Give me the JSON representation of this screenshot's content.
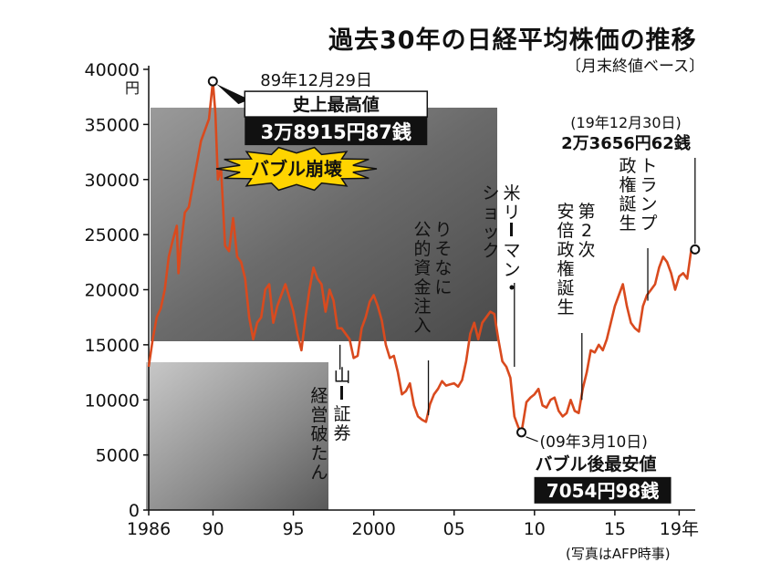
{
  "chart_data": {
    "type": "line",
    "title": "過去30年の日経平均株価の推移",
    "subtitle": "〔月末終値ベース〕",
    "ylabel": "円",
    "ylim": [
      0,
      40000
    ],
    "xlim": [
      1986,
      2020
    ],
    "yticks": [
      0,
      5000,
      10000,
      15000,
      20000,
      25000,
      30000,
      35000,
      40000
    ],
    "xtick_labels": [
      {
        "x": 1986,
        "label": "1986"
      },
      {
        "x": 1990,
        "label": "90"
      },
      {
        "x": 1995,
        "label": "95"
      },
      {
        "x": 2000,
        "label": "2000"
      },
      {
        "x": 2005,
        "label": "05"
      },
      {
        "x": 2010,
        "label": "10"
      },
      {
        "x": 2015,
        "label": "15"
      },
      {
        "x": 2019,
        "label": "19年"
      }
    ],
    "series": [
      {
        "x": [
          1986.0,
          1986.25,
          1986.5,
          1986.75,
          1987.0,
          1987.25,
          1987.5,
          1987.75,
          1987.85,
          1988.0,
          1988.25,
          1988.5,
          1988.75,
          1989.0,
          1989.25,
          1989.5,
          1989.75,
          1989.99,
          1990.15,
          1990.3,
          1990.5,
          1990.75,
          1991.0,
          1991.25,
          1991.5,
          1991.75,
          1992.0,
          1992.25,
          1992.5,
          1992.75,
          1993.0,
          1993.25,
          1993.5,
          1993.75,
          1994.0,
          1994.25,
          1994.5,
          1994.75,
          1995.0,
          1995.25,
          1995.5,
          1995.75,
          1996.0,
          1996.25,
          1996.5,
          1996.75,
          1997.0,
          1997.25,
          1997.5,
          1997.75,
          1998.0,
          1998.25,
          1998.5,
          1998.75,
          1999.0,
          1999.25,
          1999.5,
          1999.75,
          2000.0,
          2000.25,
          2000.5,
          2000.75,
          2001.0,
          2001.25,
          2001.5,
          2001.75,
          2002.0,
          2002.25,
          2002.5,
          2002.75,
          2003.0,
          2003.25,
          2003.5,
          2003.75,
          2004.0,
          2004.25,
          2004.5,
          2004.75,
          2005.0,
          2005.25,
          2005.5,
          2005.75,
          2006.0,
          2006.25,
          2006.5,
          2006.75,
          2007.0,
          2007.25,
          2007.5,
          2007.75,
          2008.0,
          2008.25,
          2008.5,
          2008.75,
          2009.0,
          2009.19,
          2009.5,
          2009.75,
          2010.0,
          2010.25,
          2010.5,
          2010.75,
          2011.0,
          2011.25,
          2011.5,
          2011.75,
          2012.0,
          2012.25,
          2012.5,
          2012.75,
          2013.0,
          2013.25,
          2013.5,
          2013.75,
          2014.0,
          2014.25,
          2014.5,
          2014.75,
          2015.0,
          2015.25,
          2015.5,
          2015.75,
          2016.0,
          2016.25,
          2016.5,
          2016.75,
          2017.0,
          2017.25,
          2017.5,
          2017.75,
          2018.0,
          2018.25,
          2018.5,
          2018.75,
          2019.0,
          2019.25,
          2019.5,
          2019.75,
          2019.99
        ],
        "values": [
          13000,
          15500,
          17500,
          18300,
          20000,
          23000,
          24500,
          25800,
          21500,
          24000,
          27000,
          27500,
          29500,
          31500,
          33500,
          34500,
          35500,
          38915,
          36000,
          30000,
          31000,
          24000,
          23500,
          26500,
          23000,
          22500,
          21000,
          17500,
          15500,
          17000,
          17500,
          20000,
          20500,
          17000,
          18500,
          19500,
          20500,
          19300,
          18000,
          16000,
          14500,
          17500,
          20000,
          22000,
          21000,
          20500,
          18000,
          20000,
          19000,
          16500,
          16500,
          16000,
          15500,
          13800,
          14000,
          16500,
          17500,
          18900,
          19500,
          18500,
          17200,
          15000,
          13800,
          14000,
          12500,
          10500,
          10800,
          11500,
          9500,
          8500,
          8200,
          8000,
          9600,
          10500,
          11000,
          11700,
          11300,
          11400,
          11500,
          11200,
          11800,
          13500,
          16000,
          17000,
          15500,
          17000,
          17500,
          18000,
          17800,
          15500,
          13500,
          13000,
          12000,
          8500,
          7500,
          7054,
          9800,
          10200,
          10500,
          11000,
          9500,
          9300,
          10000,
          10200,
          9000,
          8500,
          8800,
          10000,
          9000,
          8800,
          11000,
          12500,
          14500,
          14300,
          15000,
          14500,
          15500,
          17000,
          18500,
          19500,
          20500,
          18500,
          17000,
          16500,
          16200,
          18500,
          19500,
          20000,
          20500,
          22000,
          23000,
          22500,
          21500,
          20000,
          21200,
          21500,
          21000,
          23600,
          23656
        ]
      }
    ],
    "annotations": [
      {
        "text": "89年12月29日",
        "x": 1989.99,
        "y": 38915
      },
      {
        "text": "史上最高値",
        "x": 1989.99,
        "y": 38915
      },
      {
        "text": "3万8915円87銭",
        "x": 1989.99,
        "y": 38915
      },
      {
        "text": "バブル崩壊",
        "x": 1990.3,
        "y": 30000
      },
      {
        "text": "山一證券経営破たん",
        "x": 1997.9,
        "y": 16000
      },
      {
        "text": "りそなに公的資金注入",
        "x": 2003.4,
        "y": 8000
      },
      {
        "text": "米リーマン・ショック",
        "x": 2008.75,
        "y": 12000
      },
      {
        "text": "(09年3月10日)",
        "x": 2009.19,
        "y": 7054
      },
      {
        "text": "バブル後最安値",
        "x": 2009.19,
        "y": 7054
      },
      {
        "text": "7054円98銭",
        "x": 2009.19,
        "y": 7054
      },
      {
        "text": "第2次安倍政権誕生",
        "x": 2012.95,
        "y": 10000
      },
      {
        "text": "トランプ政権誕生",
        "x": 2017.05,
        "y": 19500
      },
      {
        "text": "(19年12月30日)",
        "x": 2019.99,
        "y": 23656
      },
      {
        "text": "2万3656円62銭",
        "x": 2019.99,
        "y": 23656
      }
    ],
    "note": "(写真はAFP時事)",
    "colors": {
      "line": "#d94a1e",
      "label_box": "#111111"
    }
  }
}
